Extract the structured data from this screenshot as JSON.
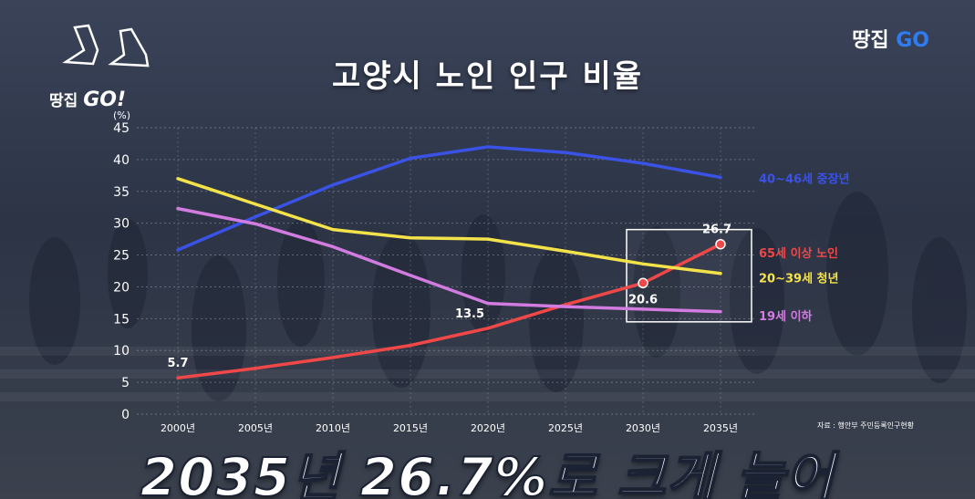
{
  "title": "고양시 노인 인구 비율",
  "brand_left": {
    "text": "땅집",
    "go": "GO!"
  },
  "brand_right": {
    "text": "땅집",
    "go": "GO"
  },
  "source": "자료 : 행안부 주민등록인구현황",
  "caption": "2035년 26.7%로 크게 늘어",
  "colors": {
    "red": "#f04848",
    "yellow": "#f3e24a",
    "blue": "#3a52e6",
    "pink": "#d27be0",
    "background": "#2c3446"
  },
  "chart_data": {
    "type": "line",
    "ylabel": "(%)",
    "ylim": [
      0,
      45
    ],
    "yticks": [
      0,
      5,
      10,
      15,
      20,
      25,
      30,
      35,
      40,
      45
    ],
    "categories": [
      "2000년",
      "2005년",
      "2010년",
      "2015년",
      "2020년",
      "2025년",
      "2030년",
      "2035년"
    ],
    "grid": true,
    "legend": "right-inline",
    "series": [
      {
        "name": "40~46세 중장년",
        "color": "#3a52e6",
        "values": [
          25.8,
          31.0,
          36.0,
          40.2,
          42.0,
          41.1,
          39.4,
          37.2
        ]
      },
      {
        "name": "65세 이상 노인",
        "color": "#f04848",
        "values": [
          5.7,
          7.2,
          8.9,
          10.8,
          13.5,
          17.2,
          20.6,
          26.7
        ]
      },
      {
        "name": "20~39세 청년",
        "color": "#f3e24a",
        "values": [
          37.0,
          33.0,
          29.0,
          27.7,
          27.5,
          25.6,
          23.6,
          22.1
        ]
      },
      {
        "name": "19세 이하",
        "color": "#d27be0",
        "values": [
          32.3,
          29.9,
          26.3,
          21.8,
          17.4,
          16.9,
          16.5,
          16.1
        ]
      }
    ],
    "annotations": [
      {
        "series": "65세 이상 노인",
        "x": "2000년",
        "text": "5.7"
      },
      {
        "series": "65세 이상 노인",
        "x": "2020년",
        "text": "13.5"
      },
      {
        "series": "65세 이상 노인",
        "x": "2030년",
        "text": "20.6"
      },
      {
        "series": "65세 이상 노인",
        "x": "2035년",
        "text": "26.7"
      }
    ],
    "highlight_box": {
      "from": "2030년",
      "to": "2035년"
    }
  }
}
